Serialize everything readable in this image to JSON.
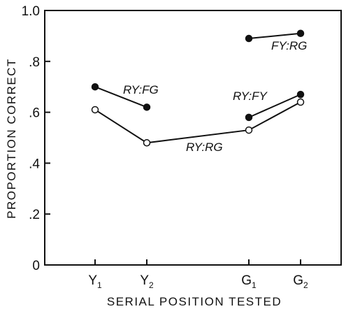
{
  "chart_data": {
    "type": "line",
    "xlabel": "SERIAL POSITION TESTED",
    "ylabel": "PROPORTION CORRECT",
    "ylim": [
      0,
      1.0
    ],
    "yticks": [
      {
        "value": 0,
        "label": "0"
      },
      {
        "value": 0.2,
        "label": ".2"
      },
      {
        "value": 0.4,
        "label": ".4"
      },
      {
        "value": 0.6,
        "label": ".6"
      },
      {
        "value": 0.8,
        "label": ".8"
      },
      {
        "value": 1.0,
        "label": "1.0"
      }
    ],
    "xticks": [
      {
        "key": "Y1",
        "base": "Y",
        "sub": "1",
        "position": 1.0
      },
      {
        "key": "Y2",
        "base": "Y",
        "sub": "2",
        "position": 2.0
      },
      {
        "key": "G1",
        "base": "G",
        "sub": "1",
        "position": 4.0
      },
      {
        "key": "G2",
        "base": "G",
        "sub": "2",
        "position": 5.0
      }
    ],
    "grid": false,
    "series": [
      {
        "name": "RY:FG",
        "marker": "filled",
        "x": [
          "Y1",
          "Y2"
        ],
        "y": [
          0.7,
          0.62
        ]
      },
      {
        "name": "RY:RG",
        "marker": "open",
        "x": [
          "Y1",
          "Y2",
          "G1",
          "G2"
        ],
        "y": [
          0.61,
          0.48,
          0.53,
          0.64
        ]
      },
      {
        "name": "RY:FY",
        "marker": "filled",
        "x": [
          "G1",
          "G2"
        ],
        "y": [
          0.58,
          0.67
        ]
      },
      {
        "name": "FY:RG",
        "marker": "filled",
        "x": [
          "G1",
          "G2"
        ],
        "y": [
          0.89,
          0.91
        ]
      }
    ]
  }
}
